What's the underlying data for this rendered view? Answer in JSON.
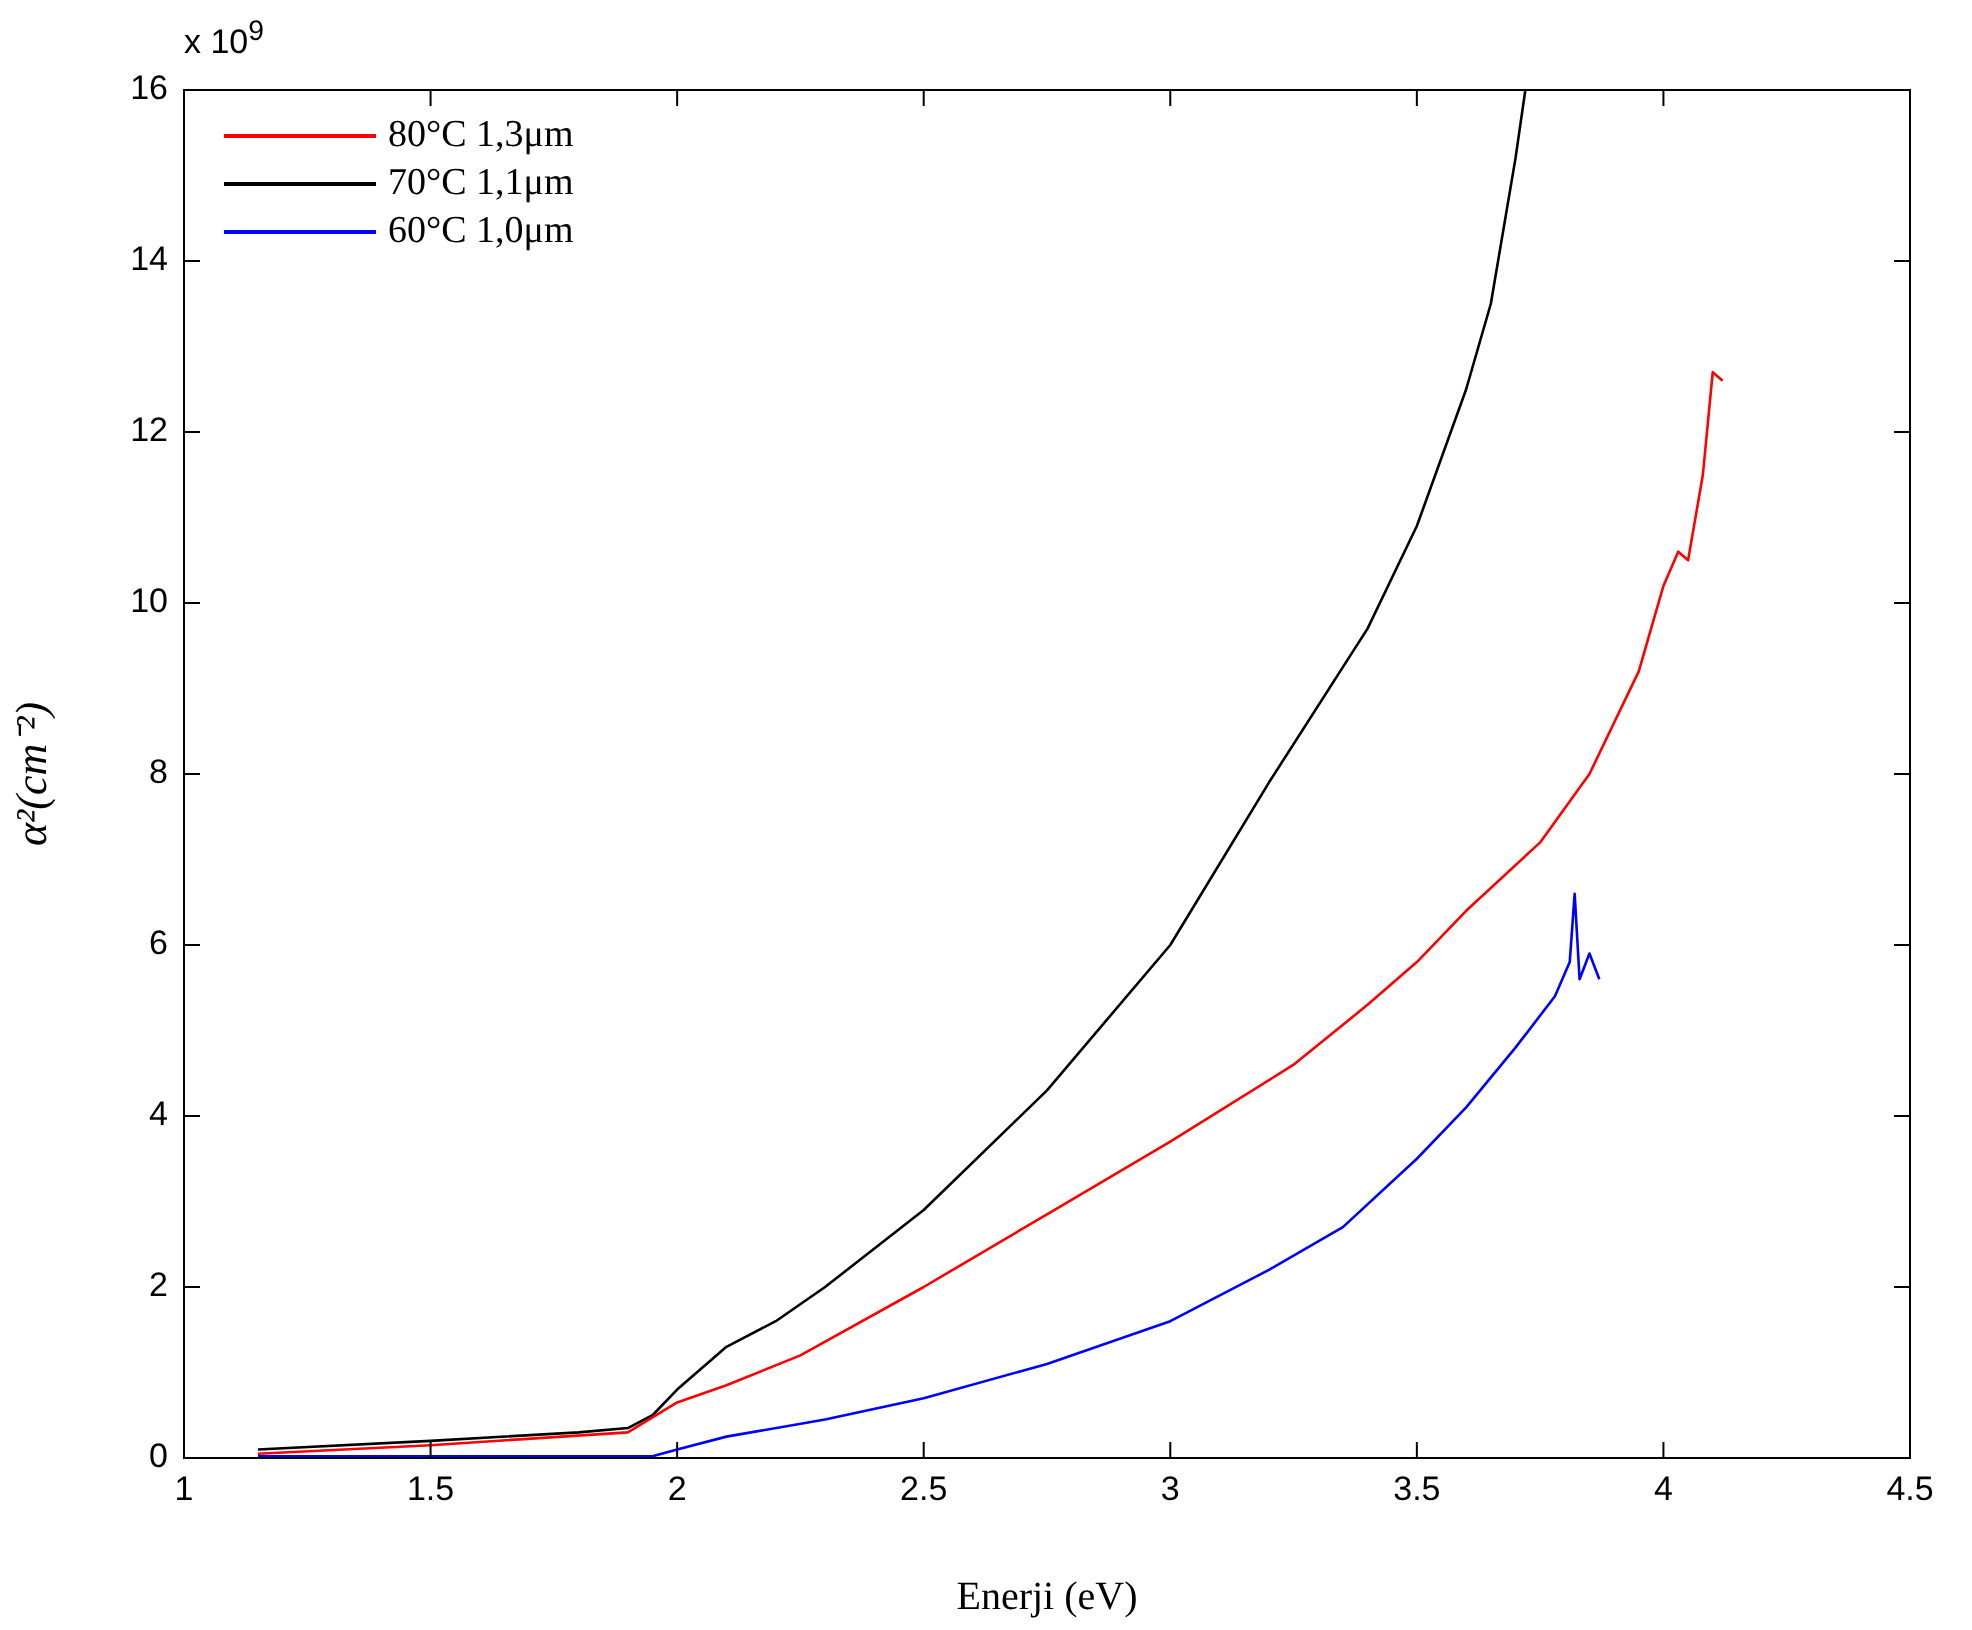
{
  "chart_data": {
    "type": "line",
    "xlabel": "Enerji (eV)",
    "ylabel": "α²(cm⁻²)",
    "annotations": [
      "x 10$^{9}$"
    ],
    "xlim": [
      1,
      4.5
    ],
    "xticks": [
      1,
      1.5,
      2,
      2.5,
      3,
      3.5,
      4,
      4.5
    ],
    "ylim": [
      0,
      16
    ],
    "yticks": [
      0,
      2,
      4,
      6,
      8,
      10,
      12,
      14,
      16
    ],
    "grid": false,
    "legend": "top left",
    "marker": "none",
    "line_style": "solid",
    "series": [
      {
        "name": "80°C 1,3μm",
        "color": "#ff0000",
        "x": [
          1.15,
          1.5,
          1.9,
          2.0,
          2.1,
          2.25,
          2.5,
          2.75,
          3.0,
          3.25,
          3.4,
          3.5,
          3.6,
          3.75,
          3.85,
          3.95,
          4.0,
          4.03,
          4.05,
          4.08,
          4.1,
          4.12
        ],
        "values": [
          0.05,
          0.15,
          0.3,
          0.65,
          0.85,
          1.2,
          2.0,
          2.85,
          3.7,
          4.6,
          5.3,
          5.8,
          6.4,
          7.2,
          8.0,
          9.2,
          10.2,
          10.6,
          10.5,
          11.5,
          12.7,
          12.6
        ]
      },
      {
        "name": "70°C 1,1μm",
        "color": "#000000",
        "x": [
          1.15,
          1.5,
          1.8,
          1.9,
          1.95,
          2.0,
          2.1,
          2.2,
          2.3,
          2.5,
          2.75,
          3.0,
          3.2,
          3.4,
          3.5,
          3.6,
          3.65,
          3.7,
          3.72
        ],
        "values": [
          0.1,
          0.2,
          0.3,
          0.35,
          0.5,
          0.8,
          1.3,
          1.6,
          2.0,
          2.9,
          4.3,
          6.0,
          7.9,
          9.7,
          10.9,
          12.5,
          13.5,
          15.2,
          16
        ]
      },
      {
        "name": "60°C 1,0μm",
        "color": "#0000ff",
        "x": [
          1.15,
          1.95,
          2.0,
          2.1,
          2.3,
          2.5,
          2.75,
          3.0,
          3.2,
          3.35,
          3.5,
          3.6,
          3.7,
          3.78,
          3.81,
          3.82,
          3.83,
          3.85,
          3.87
        ],
        "values": [
          0.02,
          0.02,
          0.1,
          0.25,
          0.45,
          0.7,
          1.1,
          1.6,
          2.2,
          2.7,
          3.5,
          4.1,
          4.8,
          5.4,
          5.8,
          6.6,
          5.6,
          5.9,
          5.6
        ]
      }
    ]
  }
}
